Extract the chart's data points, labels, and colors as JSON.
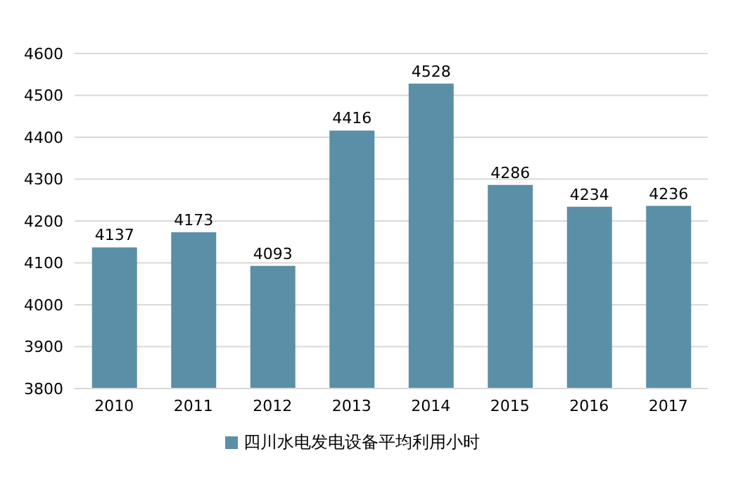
{
  "chart_data": {
    "type": "bar",
    "categories": [
      "2010",
      "2011",
      "2012",
      "2013",
      "2014",
      "2015",
      "2016",
      "2017"
    ],
    "series": [
      {
        "name": "四川水电发电设备平均利用小时",
        "color": "#5b8fa8",
        "values": [
          4137,
          4173,
          4093,
          4416,
          4528,
          4286,
          4234,
          4236
        ]
      }
    ],
    "ylim": [
      3800,
      4600
    ],
    "yticks": [
      3800,
      3900,
      4000,
      4100,
      4200,
      4300,
      4400,
      4500,
      4600
    ],
    "grid": "y",
    "legend": "bottom",
    "data_labels": true
  }
}
